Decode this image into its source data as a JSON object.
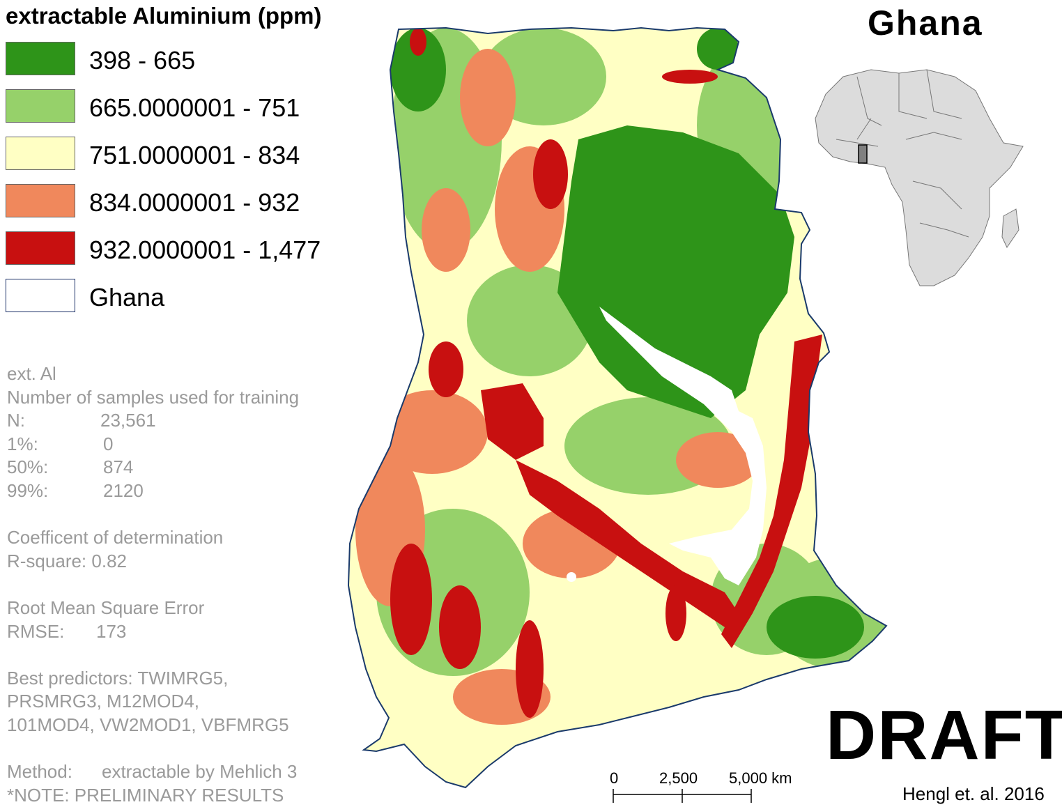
{
  "legend": {
    "title": "extractable Aluminium (ppm)",
    "items": [
      {
        "label": "398 - 665",
        "color": "#2e9419"
      },
      {
        "label": "665.0000001 - 751",
        "color": "#96d16a"
      },
      {
        "label": "751.0000001 - 834",
        "color": "#ffffc4"
      },
      {
        "label": "834.0000001 - 932",
        "color": "#f0885c"
      },
      {
        "label": "932.0000001 - 1,477",
        "color": "#c81010"
      },
      {
        "label": "Ghana",
        "color": "#ffffff",
        "border": "#1a2f66"
      }
    ]
  },
  "stats": {
    "variable": "ext. Al",
    "samples_heading": "Number of samples used for training",
    "n_label": "N:",
    "n_value": "23,561",
    "p1_label": "1%:",
    "p1_value": "0",
    "p50_label": "50%:",
    "p50_value": "874",
    "p99_label": "99%:",
    "p99_value": "2120",
    "cod_heading": "Coefficent of determination",
    "rsquare": "R-square: 0.82",
    "rmse_heading": "Root Mean Square Error",
    "rmse_label": "RMSE:",
    "rmse_value": "173",
    "predictors_line1": "Best predictors: TWIMRG5,",
    "predictors_line2": "PRSMRG3, M12MOD4,",
    "predictors_line3": "101MOD4, VW2MOD1, VBFMRG5",
    "method_label": "Method:",
    "method_value": "extractable by Mehlich 3",
    "note": "*NOTE: PRELIMINARY RESULTS"
  },
  "map": {
    "title": "Ghana",
    "draft": "DRAFT",
    "credit": "Hengl et. al. 2016",
    "scale_labels": [
      "0",
      "2,500",
      "5,000 km"
    ],
    "colors": {
      "border": "#1a3a6b",
      "lake": "#ffffff",
      "inset_land": "#dcdcdc",
      "inset_highlight": "#808080"
    }
  }
}
